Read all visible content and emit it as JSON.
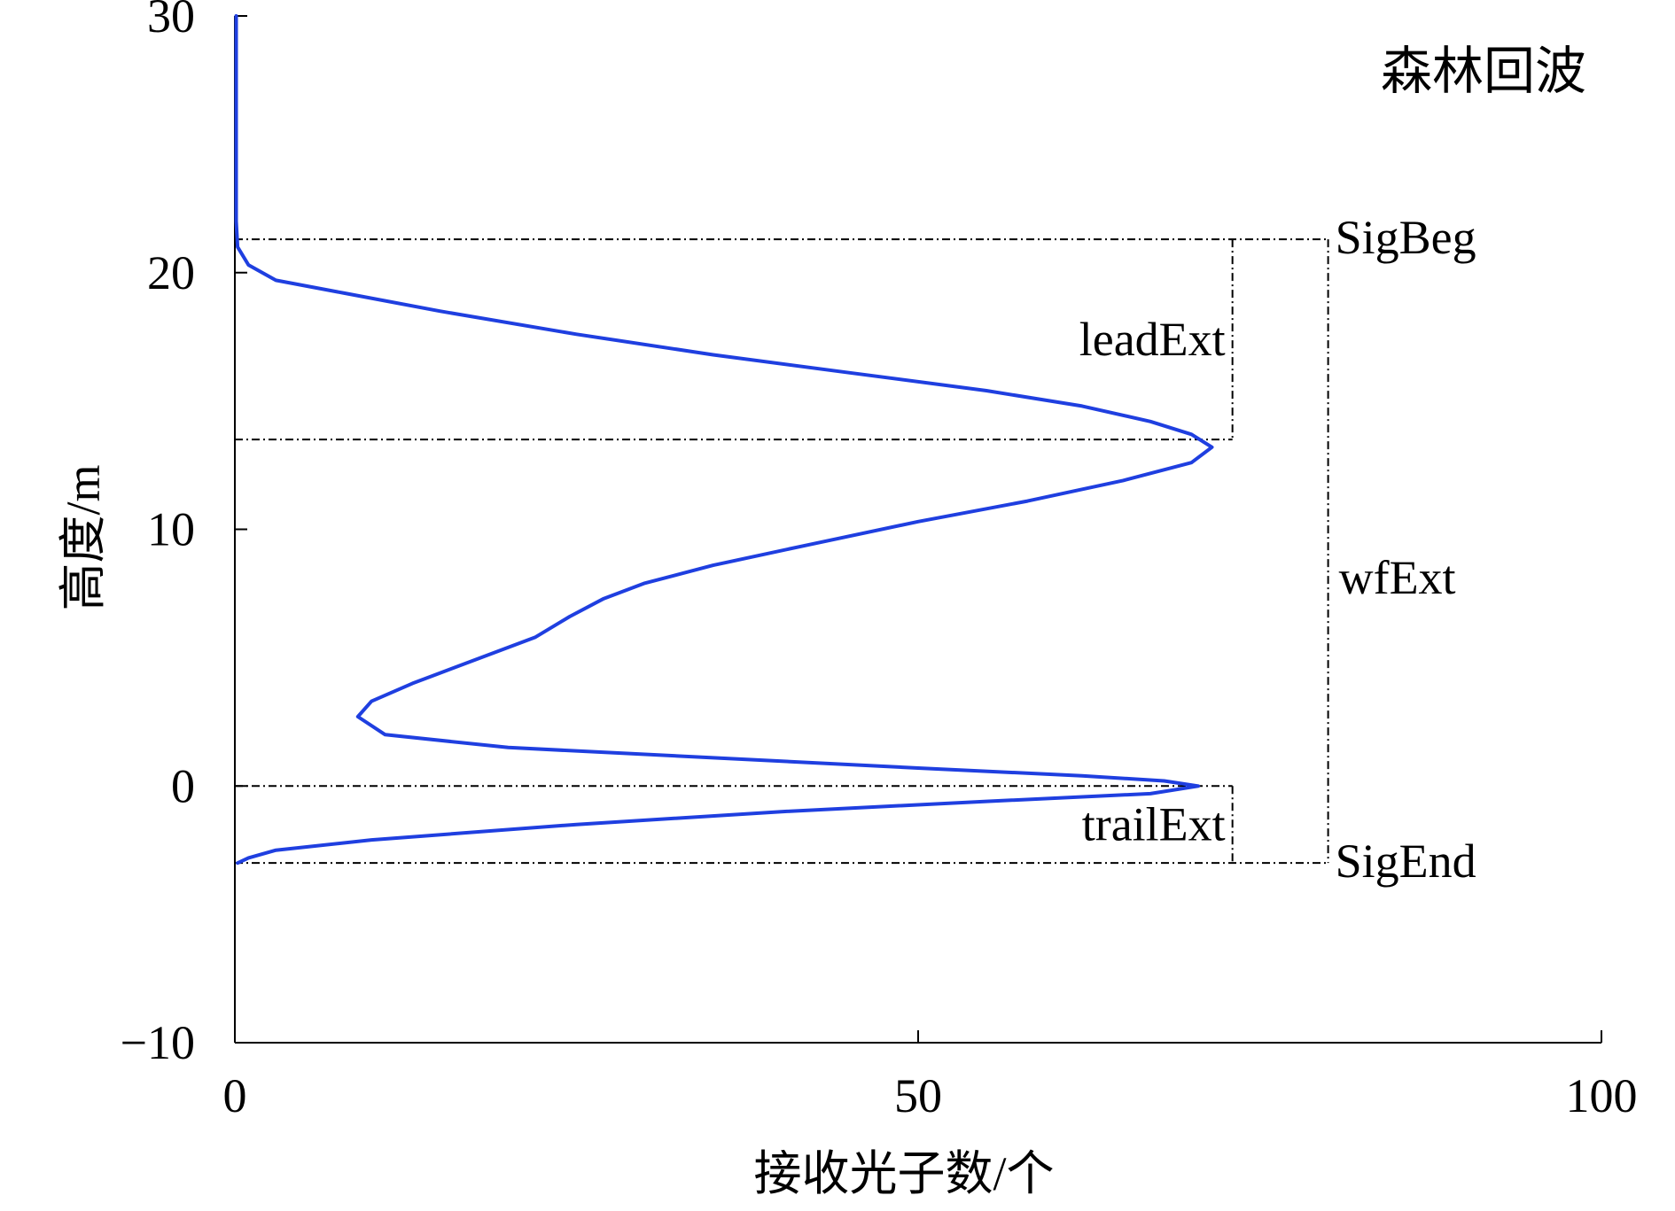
{
  "chart_data": {
    "type": "line",
    "title": "森林回波",
    "xlabel": "接收光子数/个",
    "ylabel": "高度/m",
    "xlim": [
      0,
      100
    ],
    "ylim": [
      -10,
      30
    ],
    "x_ticks": [
      0,
      50,
      100
    ],
    "x_tick_labels": [
      "0",
      "50",
      "100"
    ],
    "y_ticks": [
      -10,
      0,
      10,
      20,
      30
    ],
    "y_tick_labels": [
      "−10",
      "0",
      "10",
      "20",
      "30"
    ],
    "grid": false,
    "series": [
      {
        "color": "#1f3fe0",
        "points": [
          [
            0.1,
            30
          ],
          [
            0.1,
            25
          ],
          [
            0.1,
            22
          ],
          [
            0.2,
            21.0
          ],
          [
            1.0,
            20.3
          ],
          [
            3,
            19.7
          ],
          [
            8,
            19.2
          ],
          [
            15,
            18.5
          ],
          [
            25,
            17.6
          ],
          [
            35,
            16.8
          ],
          [
            45,
            16.1
          ],
          [
            55,
            15.4
          ],
          [
            62,
            14.8
          ],
          [
            67,
            14.2
          ],
          [
            70,
            13.7
          ],
          [
            71.5,
            13.2
          ],
          [
            70,
            12.6
          ],
          [
            65,
            11.9
          ],
          [
            58,
            11.1
          ],
          [
            50,
            10.3
          ],
          [
            42,
            9.4
          ],
          [
            35,
            8.6
          ],
          [
            30,
            7.9
          ],
          [
            27,
            7.3
          ],
          [
            24.5,
            6.6
          ],
          [
            22,
            5.8
          ],
          [
            18,
            5.0
          ],
          [
            13,
            4.0
          ],
          [
            10,
            3.3
          ],
          [
            9,
            2.7
          ],
          [
            11,
            2.0
          ],
          [
            20,
            1.5
          ],
          [
            35,
            1.1
          ],
          [
            50,
            0.7
          ],
          [
            62,
            0.4
          ],
          [
            68,
            0.2
          ],
          [
            70.5,
            0.0
          ],
          [
            67,
            -0.3
          ],
          [
            55,
            -0.6
          ],
          [
            40,
            -1.0
          ],
          [
            25,
            -1.5
          ],
          [
            10,
            -2.1
          ],
          [
            3,
            -2.5
          ],
          [
            1.0,
            -2.8
          ],
          [
            0.2,
            -3.0
          ]
        ]
      }
    ],
    "reference_levels": [
      {
        "y": 21.3,
        "label": "SigBeg"
      },
      {
        "y": 13.5,
        "label": ""
      },
      {
        "y": 0.0,
        "label": ""
      },
      {
        "y": -3.0,
        "label": "SigEnd"
      }
    ],
    "annotations": [
      {
        "text": "leadExt",
        "from_y": 21.3,
        "to_y": 13.5,
        "x": 73
      },
      {
        "text": "trailExt",
        "from_y": 0.0,
        "to_y": -3.0,
        "x": 73
      },
      {
        "text": "wfExt",
        "from_y": 21.3,
        "to_y": -3.0,
        "x": 80
      }
    ]
  }
}
